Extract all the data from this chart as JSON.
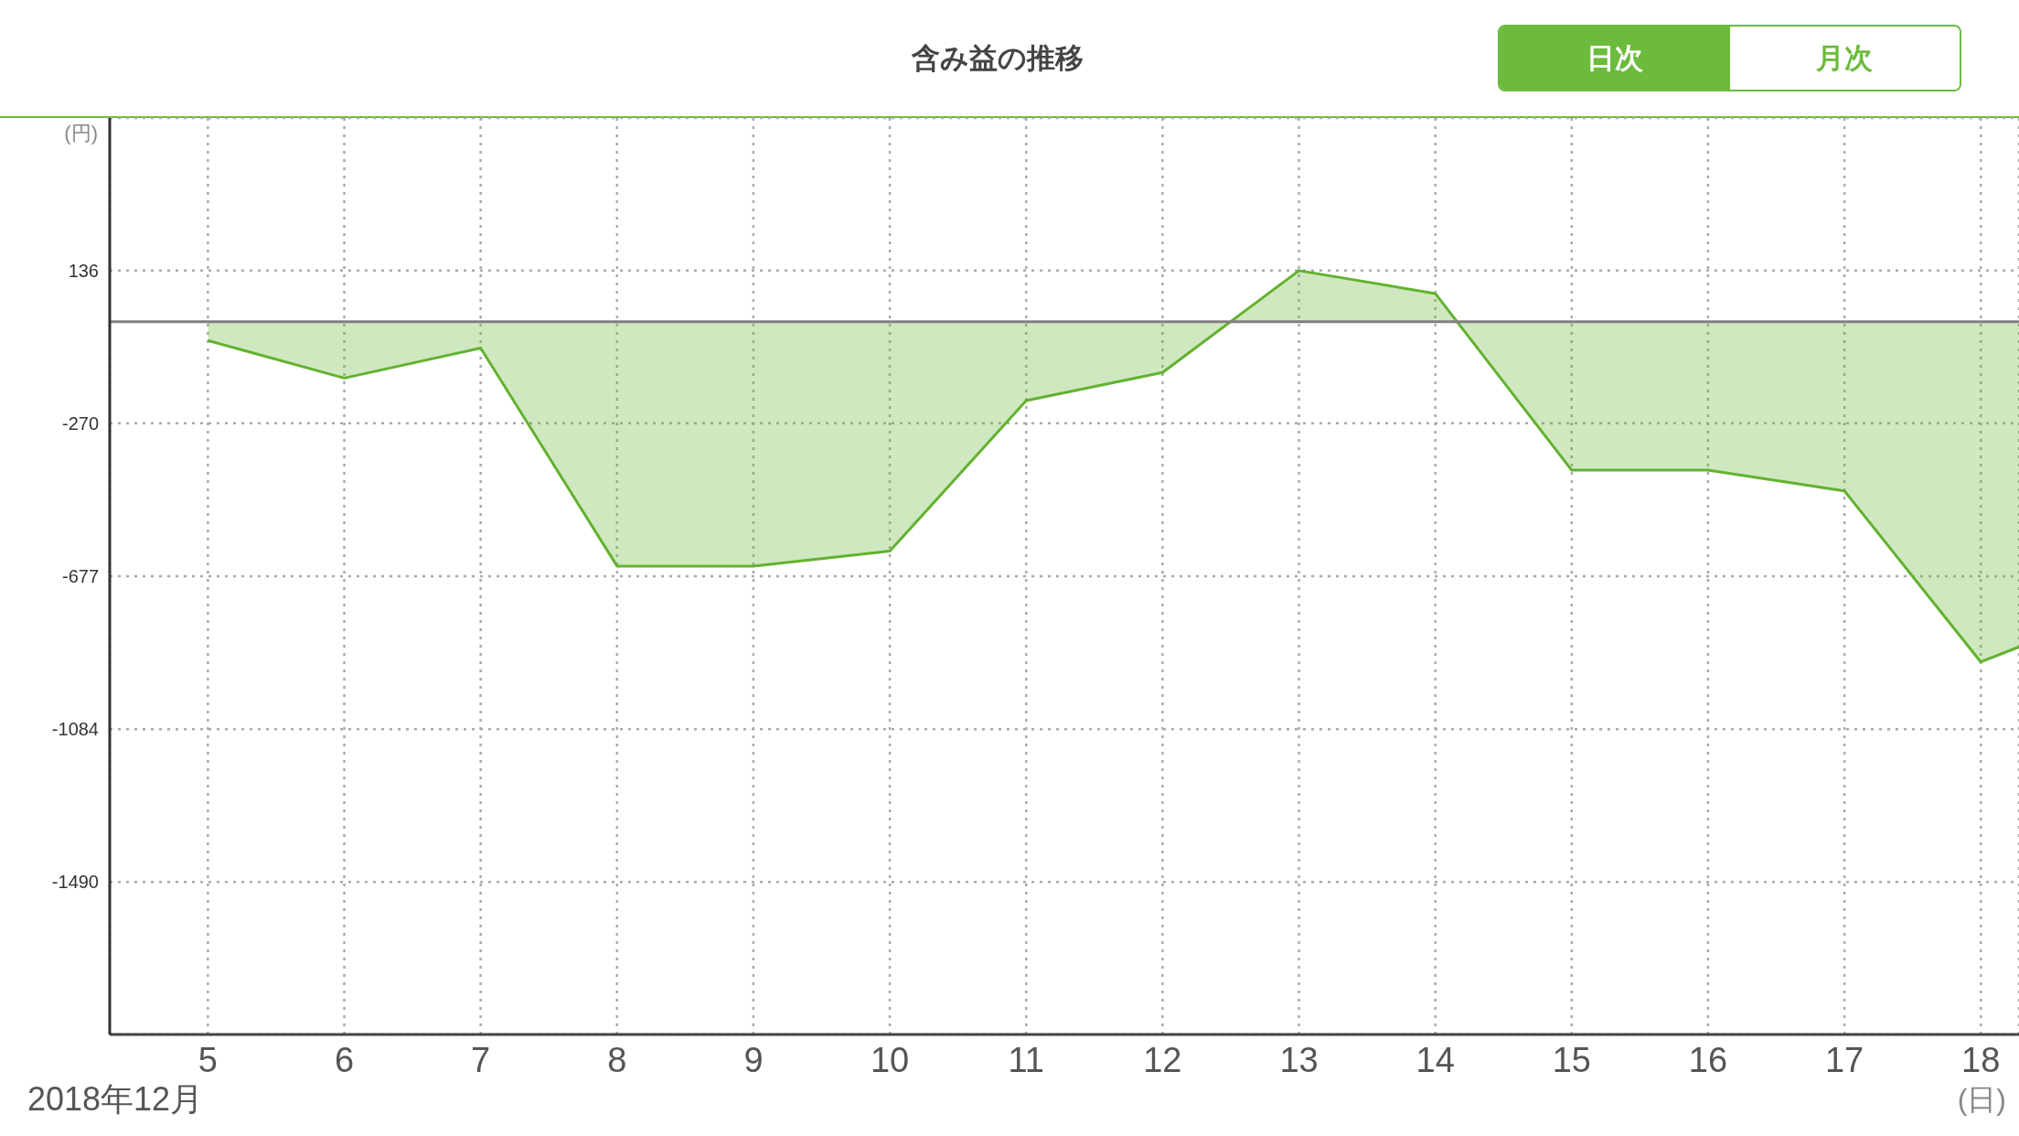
{
  "chart_data": {
    "type": "area",
    "title": "含み益の推移",
    "xlabel": "(日)",
    "ylabel": "(円)",
    "annotations": [
      "2018年12月",
      "日次",
      "月次"
    ],
    "x": [
      5,
      6,
      7,
      8,
      9,
      10,
      11,
      12,
      13,
      14,
      15,
      16,
      17,
      18,
      18.28
    ],
    "series": [
      {
        "color": "#62b22f",
        "values": [
          -50,
          -150,
          -70,
          -650,
          -650,
          -610,
          -210,
          -135,
          136,
          75,
          -395,
          -395,
          -450,
          -905,
          -865
        ]
      }
    ],
    "xlim": [
      4.28,
      18.28
    ],
    "xticks": [
      5,
      6,
      7,
      8,
      9,
      10,
      11,
      12,
      13,
      14,
      15,
      16,
      17,
      18
    ],
    "ylim": [
      -1896,
      542
    ],
    "yticks": [
      136,
      -270,
      -677,
      -1084,
      -1490
    ],
    "grid": true,
    "ref_lines": [
      {
        "axis": "y",
        "value": 0,
        "color": "#7f7f7f"
      }
    ]
  }
}
